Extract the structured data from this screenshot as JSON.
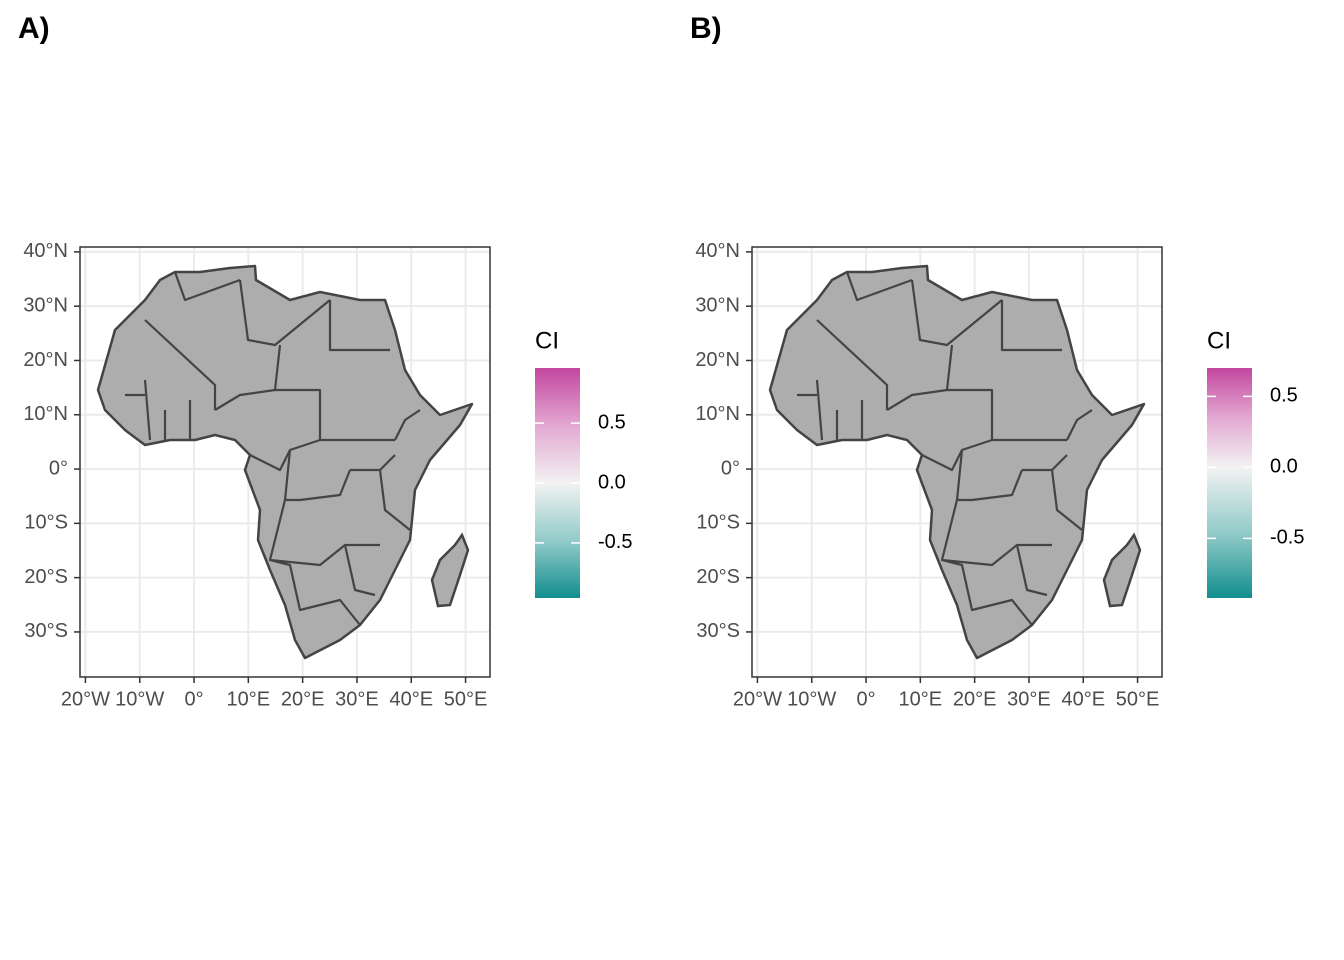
{
  "panels": [
    {
      "label": "A)",
      "xlim": [
        -21,
        54.5
      ],
      "ylim": [
        -38.3,
        40.9
      ],
      "xticks": [
        {
          "value": -20,
          "label": "20°W"
        },
        {
          "value": -10,
          "label": "10°W"
        },
        {
          "value": 0,
          "label": "0°"
        },
        {
          "value": 10,
          "label": "10°E"
        },
        {
          "value": 20,
          "label": "20°E"
        },
        {
          "value": 30,
          "label": "30°E"
        },
        {
          "value": 40,
          "label": "40°E"
        },
        {
          "value": 50,
          "label": "50°E"
        }
      ],
      "yticks": [
        {
          "value": 40,
          "label": "40°N"
        },
        {
          "value": 30,
          "label": "30°N"
        },
        {
          "value": 20,
          "label": "20°N"
        },
        {
          "value": 10,
          "label": "10°N"
        },
        {
          "value": 0,
          "label": "0°"
        },
        {
          "value": -10,
          "label": "10°S"
        },
        {
          "value": -20,
          "label": "20°S"
        },
        {
          "value": -30,
          "label": "30°S"
        }
      ],
      "legend": {
        "title": "CI",
        "clim": [
          -0.96,
          0.96
        ],
        "ticks": [
          0.5,
          {
            "value": 0,
            "label": "0.0"
          },
          -0.5
        ]
      }
    },
    {
      "label": "B)",
      "xlim": [
        -21,
        54.5
      ],
      "ylim": [
        -38.3,
        40.9
      ],
      "xticks": [
        {
          "value": -20,
          "label": "20°W"
        },
        {
          "value": -10,
          "label": "10°W"
        },
        {
          "value": 0,
          "label": "0°"
        },
        {
          "value": 10,
          "label": "10°E"
        },
        {
          "value": 20,
          "label": "20°E"
        },
        {
          "value": 30,
          "label": "30°E"
        },
        {
          "value": 40,
          "label": "40°E"
        },
        {
          "value": 50,
          "label": "50°E"
        }
      ],
      "yticks": [
        {
          "value": 40,
          "label": "40°N"
        },
        {
          "value": 30,
          "label": "30°N"
        },
        {
          "value": 20,
          "label": "20°N"
        },
        {
          "value": 10,
          "label": "10°N"
        },
        {
          "value": 0,
          "label": "0°"
        },
        {
          "value": -10,
          "label": "10°S"
        },
        {
          "value": -20,
          "label": "20°S"
        },
        {
          "value": -30,
          "label": "30°S"
        }
      ],
      "legend": {
        "title": "CI",
        "clim": [
          -0.92,
          0.7
        ],
        "ticks": [
          0.5,
          {
            "value": 0,
            "label": "0.0"
          },
          -0.5
        ]
      }
    }
  ]
}
